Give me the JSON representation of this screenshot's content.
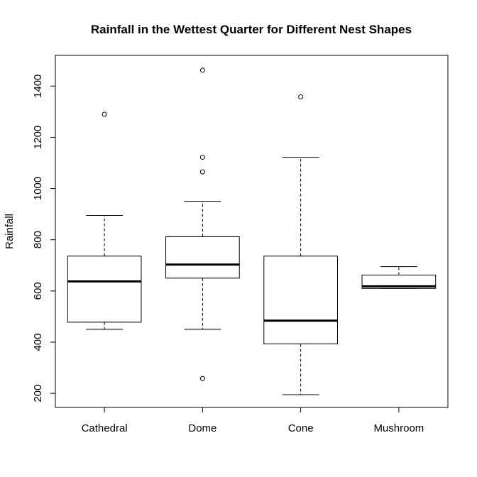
{
  "chart_data": {
    "type": "boxplot",
    "title": "Rainfall in the Wettest Quarter for Different Nest Shapes",
    "xlabel": "",
    "ylabel": "Rainfall",
    "ylim": [
      145,
      1520
    ],
    "y_ticks": [
      200,
      400,
      600,
      800,
      1000,
      1200,
      1400
    ],
    "categories": [
      "Cathedral",
      "Dome",
      "Cone",
      "Mushroom"
    ],
    "boxes": [
      {
        "category": "Cathedral",
        "whisker_low": 450,
        "q1": 478,
        "median": 637,
        "q3": 736,
        "whisker_high": 895,
        "outliers": [
          1290
        ]
      },
      {
        "category": "Dome",
        "whisker_low": 450,
        "q1": 650,
        "median": 703,
        "q3": 812,
        "whisker_high": 950,
        "outliers": [
          258,
          1065,
          1122,
          1462
        ]
      },
      {
        "category": "Cone",
        "whisker_low": 195,
        "q1": 393,
        "median": 484,
        "q3": 736,
        "whisker_high": 1122,
        "outliers": [
          1358
        ]
      },
      {
        "category": "Mushroom",
        "whisker_low": 610,
        "q1": 610,
        "median": 618,
        "q3": 662,
        "whisker_high": 695,
        "outliers": []
      }
    ],
    "grid": false,
    "legend": "none"
  }
}
